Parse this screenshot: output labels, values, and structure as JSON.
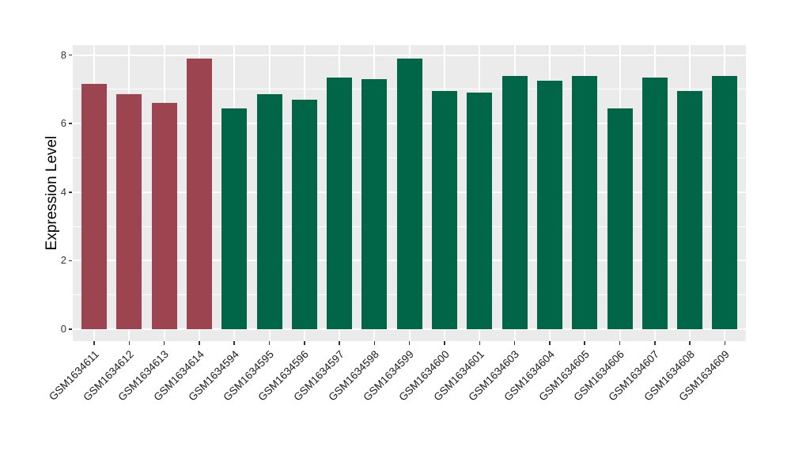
{
  "chart_data": {
    "type": "bar",
    "title": "",
    "xlabel": "",
    "ylabel": "Expression Level",
    "ylim": [
      0,
      8.3
    ],
    "yticks": [
      0,
      2,
      4,
      6,
      8
    ],
    "yticks_minor": [
      1,
      3,
      5,
      7
    ],
    "grid": true,
    "legend": "none",
    "categories": [
      "GSM1634611",
      "GSM1634612",
      "GSM1634613",
      "GSM1634614",
      "GSM1634594",
      "GSM1634595",
      "GSM1634596",
      "GSM1634597",
      "GSM1634598",
      "GSM1634599",
      "GSM1634600",
      "GSM1634601",
      "GSM1634603",
      "GSM1634604",
      "GSM1634605",
      "GSM1634606",
      "GSM1634607",
      "GSM1634608",
      "GSM1634609"
    ],
    "values": [
      7.15,
      6.85,
      6.6,
      7.9,
      6.45,
      6.85,
      6.7,
      7.35,
      7.3,
      7.9,
      6.95,
      6.9,
      7.4,
      7.25,
      7.4,
      6.45,
      7.35,
      6.95,
      7.4
    ],
    "bar_groups": [
      "highlight",
      "highlight",
      "highlight",
      "highlight",
      "default",
      "default",
      "default",
      "default",
      "default",
      "default",
      "default",
      "default",
      "default",
      "default",
      "default",
      "default",
      "default",
      "default",
      "default"
    ],
    "group_colors": {
      "highlight": "#9C4450",
      "default": "#006647"
    },
    "panel_bg": "#EBEBEB",
    "grid_color": "#FFFFFF",
    "tick_color": "#333333",
    "xtick_label_color": "#1A1A1A",
    "axis_title_color": "#000000"
  }
}
